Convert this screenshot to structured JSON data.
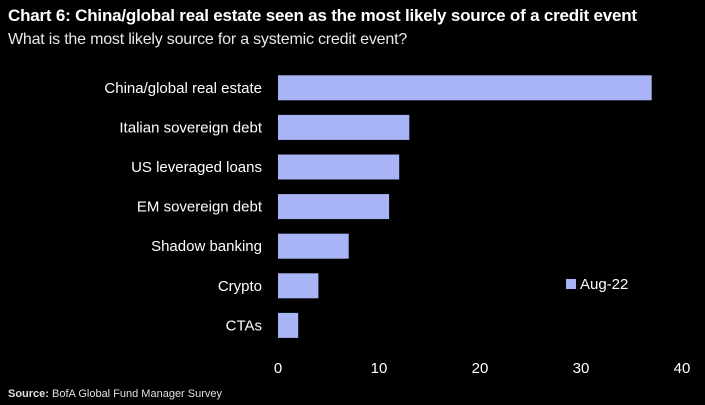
{
  "chart_data": {
    "type": "bar",
    "orientation": "horizontal",
    "title": "Chart 6: China/global real estate seen as the most likely source of a credit event",
    "subtitle": "What is the most likely source for a systemic credit event?",
    "categories": [
      "China/global real estate",
      "Italian sovereign debt",
      "US leveraged loans",
      "EM sovereign debt",
      "Shadow banking",
      "Crypto",
      "CTAs"
    ],
    "series": [
      {
        "name": "Aug-22",
        "values": [
          37,
          13,
          12,
          11,
          7,
          4,
          2
        ]
      }
    ],
    "xlim": [
      0,
      40
    ],
    "xticks": [
      0,
      10,
      20,
      30,
      40
    ],
    "xlabel": "",
    "ylabel": "",
    "grid": false,
    "legend_position": "right",
    "colors": {
      "bar": "#a9b4f7",
      "background": "#000000",
      "text": "#ffffff"
    }
  },
  "source": {
    "label": "Source:",
    "text": "BofA Global Fund Manager Survey"
  }
}
